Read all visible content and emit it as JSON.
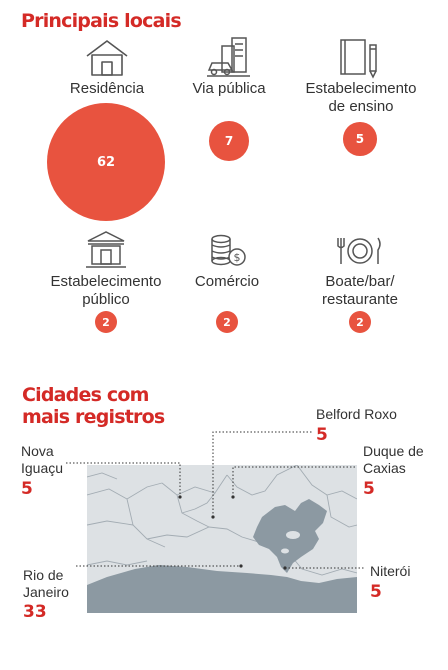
{
  "colors": {
    "accent": "#d42a26",
    "bubble": "#e8533f",
    "map_land": "#dde1e4",
    "map_border": "#a3acb3",
    "map_water": "#8c99a2"
  },
  "locais": {
    "title": "Principais locais",
    "items": [
      {
        "label": "Residência",
        "icon": "house-icon"
      },
      {
        "label": "Via pública",
        "icon": "city-street-icon"
      },
      {
        "label": "Estabelecimento de ensino",
        "icon": "notebook-pencil-icon"
      },
      {
        "label": "Estabelecimento público",
        "icon": "public-building-icon"
      },
      {
        "label": "Comércio",
        "icon": "coins-icon"
      },
      {
        "label": "Boate/bar/ restaurante",
        "icon": "plate-cutlery-icon"
      }
    ]
  },
  "cidades": {
    "title": "Cidades com mais registros"
  },
  "chart_data": [
    {
      "type": "bubble",
      "title": "Principais locais",
      "categories": [
        "Residência",
        "Via pública",
        "Estabelecimento de ensino",
        "Estabelecimento público",
        "Comércio",
        "Boate/bar/restaurante"
      ],
      "values": [
        62,
        7,
        5,
        2,
        2,
        2
      ]
    },
    {
      "type": "map",
      "title": "Cidades com mais registros",
      "categories": [
        "Nova Iguaçu",
        "Belford Roxo",
        "Duque de Caxias",
        "Rio de Janeiro",
        "Niterói"
      ],
      "values": [
        5,
        5,
        5,
        33,
        5
      ]
    }
  ]
}
